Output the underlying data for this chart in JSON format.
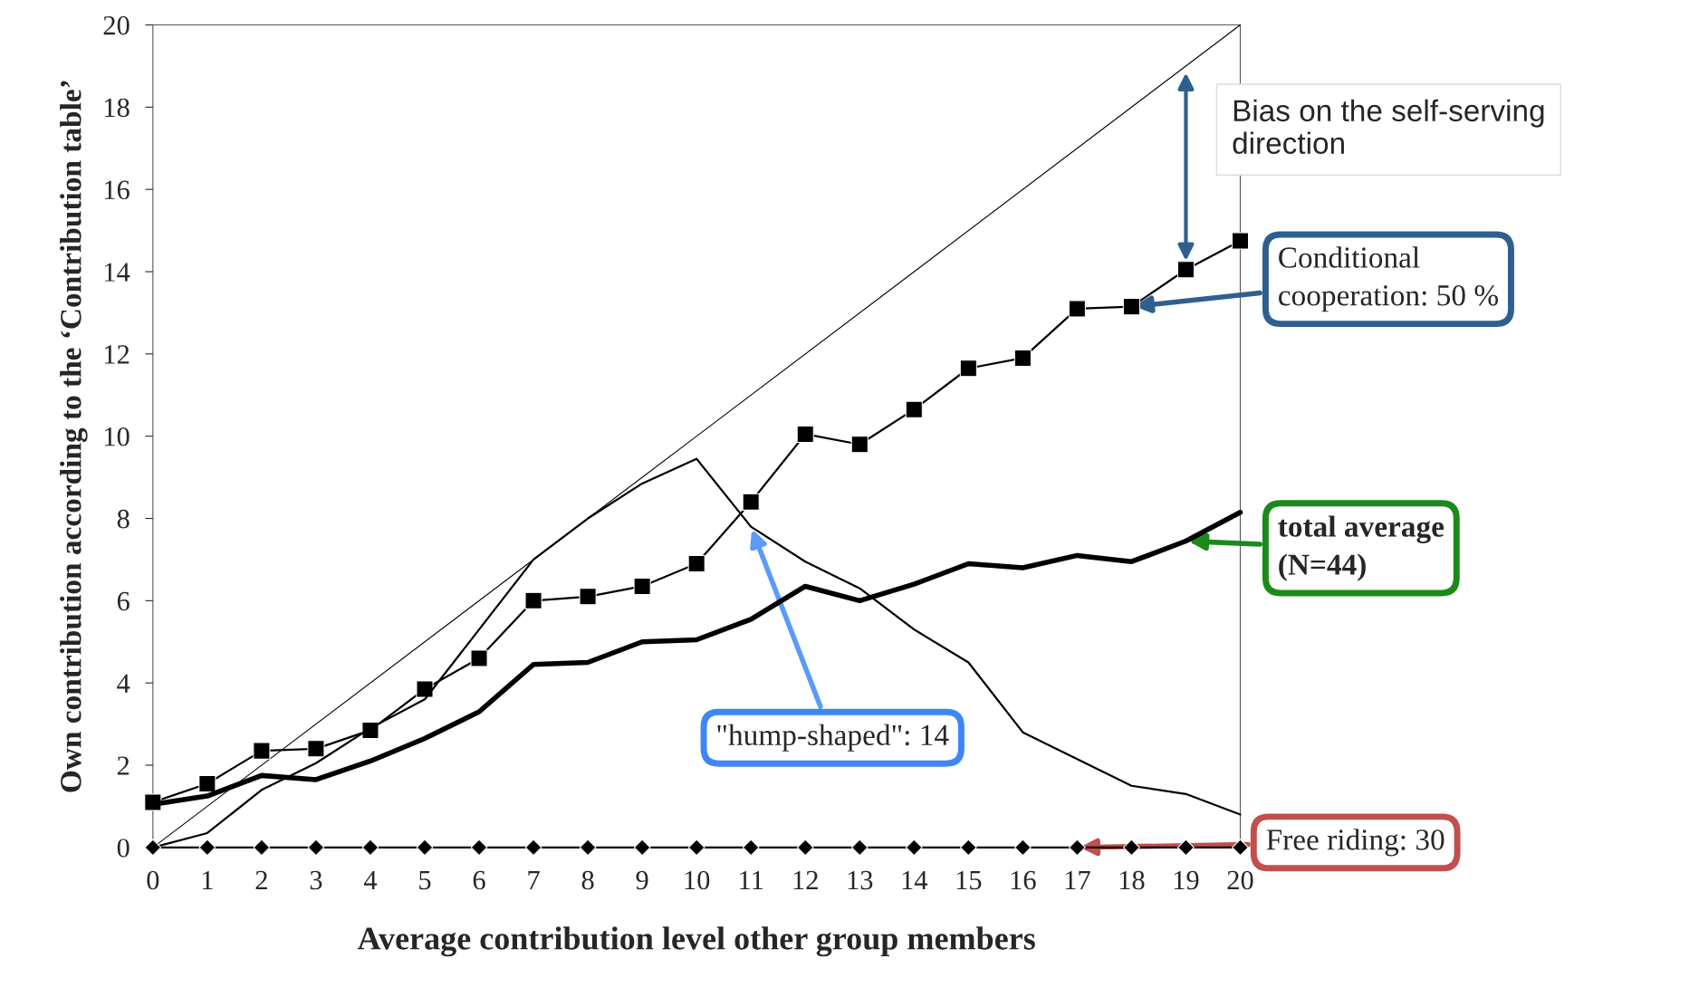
{
  "chart_data": {
    "type": "line",
    "xlabel": "Average contribution level other group members",
    "ylabel": "Own contribution according to the ‘Contribution table’",
    "x": [
      0,
      1,
      2,
      3,
      4,
      5,
      6,
      7,
      8,
      9,
      10,
      11,
      12,
      13,
      14,
      15,
      16,
      17,
      18,
      19,
      20
    ],
    "xlim": [
      0,
      20
    ],
    "ylim": [
      0,
      20
    ],
    "xticks": [
      0,
      1,
      2,
      3,
      4,
      5,
      6,
      7,
      8,
      9,
      10,
      11,
      12,
      13,
      14,
      15,
      16,
      17,
      18,
      19,
      20
    ],
    "yticks": [
      0,
      2,
      4,
      6,
      8,
      10,
      12,
      14,
      16,
      18,
      20
    ],
    "grid": false,
    "legend": false,
    "series": [
      {
        "color": "#000000",
        "x": [
          0,
          20
        ],
        "values": [
          0,
          20
        ]
      },
      {
        "color": "#000000",
        "values": [
          1.1,
          1.55,
          2.35,
          2.4,
          2.85,
          3.85,
          4.6,
          6.0,
          6.1,
          6.35,
          6.9,
          8.4,
          10.05,
          9.8,
          10.65,
          11.65,
          11.9,
          13.1,
          13.15,
          14.05,
          14.75
        ],
        "marker": "square"
      },
      {
        "color": "#000000",
        "values": [
          0,
          0.35,
          1.4,
          2.05,
          2.9,
          3.6,
          5.3,
          7.0,
          8.0,
          8.85,
          9.45,
          7.8,
          6.95,
          6.3,
          5.3,
          4.5,
          2.8,
          2.15,
          1.5,
          1.3,
          0.8
        ]
      },
      {
        "color": "#000000",
        "values": [
          1.05,
          1.25,
          1.75,
          1.65,
          2.1,
          2.65,
          3.3,
          4.45,
          4.5,
          5.0,
          5.05,
          5.55,
          6.35,
          6.0,
          6.4,
          6.9,
          6.8,
          7.1,
          6.95,
          7.45,
          8.15
        ]
      },
      {
        "color": "#000000",
        "values": [
          0,
          0,
          0,
          0,
          0,
          0,
          0,
          0,
          0,
          0,
          0,
          0,
          0,
          0,
          0,
          0,
          0,
          0,
          0,
          0,
          0
        ],
        "marker": "diamond"
      }
    ],
    "annotations": [
      {
        "text": "Bias on the self-serving direction",
        "x": 19,
        "y": 19
      },
      {
        "text": "Conditional cooperation: 50 %",
        "x": 18,
        "y": 13.15
      },
      {
        "text": "total average (N=44)",
        "x": 19,
        "y": 7.45
      },
      {
        "text": "\"hump-shaped\": 14",
        "x": 11,
        "y": 7.8
      },
      {
        "text": "Free riding: 30",
        "x": 17,
        "y": 0
      }
    ]
  }
}
